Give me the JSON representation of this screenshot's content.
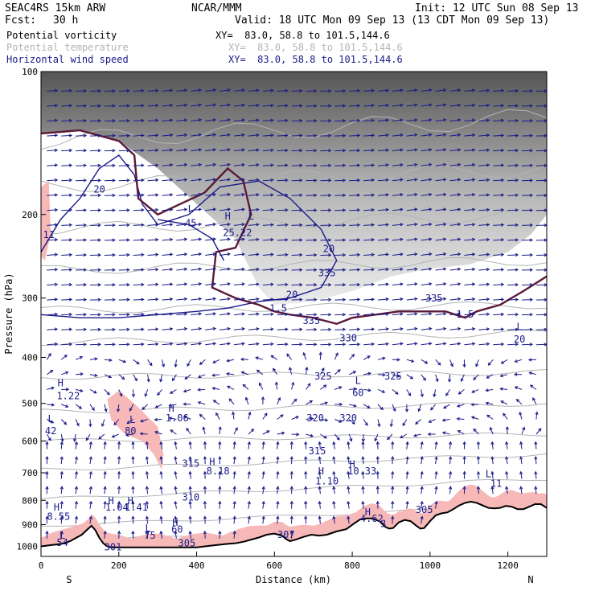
{
  "header": {
    "model": "SEAC4RS 15km ARW",
    "fcst_label": "Fcst:",
    "fcst_value": "30 h",
    "org": "NCAR/MMM",
    "init": "Init: 12 UTC Sun 08 Sep 13",
    "valid": "Valid: 18 UTC Mon 09 Sep 13 (13 CDT Mon 09 Sep 13)"
  },
  "legend": [
    {
      "name": "Potential vorticity",
      "xy": "XY=  83.0, 58.8 to 101.5,144.6",
      "color": "#000000"
    },
    {
      "name": "Potential temperature",
      "xy": "XY=  83.0, 58.8 to 101.5,144.6",
      "color": "#b4b4b4"
    },
    {
      "name": "Horizontal wind speed",
      "xy": "XY=  83.0, 58.8 to 101.5,144.6",
      "color": "#1a1a8a"
    }
  ],
  "colors": {
    "pv_fill": "#f7b8b8",
    "pv_contour": "#5a1a3a",
    "wind_contour": "#1a1a8a",
    "theta_contour": "#b4b4b4",
    "vector": "#1a1a8a",
    "terrain": "#000000"
  },
  "chart_data": {
    "type": "vertical cross-section",
    "xlabel": "Distance (km)",
    "ylabel": "Pressure (hPa)",
    "xlim": [
      0,
      1300
    ],
    "ylim": [
      100,
      1050
    ],
    "y_scale": "log",
    "x_ticks": [
      0,
      200,
      400,
      600,
      800,
      1000,
      1200
    ],
    "y_ticks": [
      100,
      200,
      300,
      400,
      500,
      600,
      700,
      800,
      900,
      1000
    ],
    "x_end_labels": {
      "left": "S",
      "right": "N"
    },
    "terrain_pressure": [
      [
        0,
        1000
      ],
      [
        20,
        995
      ],
      [
        45,
        990
      ],
      [
        60,
        985
      ],
      [
        75,
        975
      ],
      [
        90,
        960
      ],
      [
        105,
        945
      ],
      [
        120,
        920
      ],
      [
        130,
        905
      ],
      [
        140,
        925
      ],
      [
        150,
        960
      ],
      [
        160,
        985
      ],
      [
        170,
        1000
      ],
      [
        180,
        1005
      ],
      [
        200,
        1005
      ],
      [
        400,
        1005
      ],
      [
        430,
        998
      ],
      [
        460,
        992
      ],
      [
        480,
        988
      ],
      [
        500,
        985
      ],
      [
        520,
        978
      ],
      [
        540,
        968
      ],
      [
        560,
        958
      ],
      [
        580,
        945
      ],
      [
        600,
        940
      ],
      [
        620,
        950
      ],
      [
        630,
        965
      ],
      [
        640,
        975
      ],
      [
        655,
        968
      ],
      [
        675,
        955
      ],
      [
        695,
        945
      ],
      [
        715,
        950
      ],
      [
        735,
        945
      ],
      [
        760,
        930
      ],
      [
        785,
        920
      ],
      [
        805,
        895
      ],
      [
        820,
        878
      ],
      [
        835,
        873
      ],
      [
        850,
        873
      ],
      [
        870,
        885
      ],
      [
        885,
        910
      ],
      [
        895,
        918
      ],
      [
        905,
        915
      ],
      [
        920,
        890
      ],
      [
        935,
        880
      ],
      [
        950,
        885
      ],
      [
        965,
        905
      ],
      [
        975,
        918
      ],
      [
        985,
        915
      ],
      [
        1000,
        885
      ],
      [
        1015,
        860
      ],
      [
        1030,
        852
      ],
      [
        1045,
        848
      ],
      [
        1060,
        835
      ],
      [
        1075,
        820
      ],
      [
        1090,
        810
      ],
      [
        1105,
        805
      ],
      [
        1120,
        810
      ],
      [
        1135,
        820
      ],
      [
        1150,
        830
      ],
      [
        1165,
        832
      ],
      [
        1180,
        830
      ],
      [
        1195,
        822
      ],
      [
        1210,
        825
      ],
      [
        1225,
        835
      ],
      [
        1240,
        835
      ],
      [
        1255,
        825
      ],
      [
        1270,
        815
      ],
      [
        1285,
        815
      ],
      [
        1300,
        830
      ]
    ],
    "labels": [
      {
        "text": "20",
        "x": 150,
        "p": 180
      },
      {
        "text": "L",
        "x": 385,
        "p": 198
      },
      {
        "text": "45",
        "x": 385,
        "p": 212
      },
      {
        "text": "H",
        "x": 480,
        "p": 205
      },
      {
        "text": "L",
        "x": 540,
        "p": 205
      },
      {
        "text": "25.22",
        "x": 505,
        "p": 222
      },
      {
        "text": "11",
        "x": 20,
        "p": 224
      },
      {
        "text": "20",
        "x": 740,
        "p": 240
      },
      {
        "text": "20",
        "x": 645,
        "p": 300
      },
      {
        "text": "1.5",
        "x": 610,
        "p": 320
      },
      {
        "text": "1.5",
        "x": 1090,
        "p": 330
      },
      {
        "text": "L",
        "x": 1230,
        "p": 350
      },
      {
        "text": "20",
        "x": 1230,
        "p": 372
      },
      {
        "text": "H",
        "x": 50,
        "p": 460
      },
      {
        "text": "1.22",
        "x": 70,
        "p": 490
      },
      {
        "text": "L",
        "x": 815,
        "p": 455
      },
      {
        "text": "60",
        "x": 815,
        "p": 482
      },
      {
        "text": "325",
        "x": 725,
        "p": 445
      },
      {
        "text": "325",
        "x": 905,
        "p": 445
      },
      {
        "text": "H",
        "x": 335,
        "p": 520
      },
      {
        "text": "1.06",
        "x": 350,
        "p": 545
      },
      {
        "text": "L",
        "x": 25,
        "p": 548
      },
      {
        "text": "42",
        "x": 25,
        "p": 580
      },
      {
        "text": "L",
        "x": 235,
        "p": 550
      },
      {
        "text": "80",
        "x": 230,
        "p": 580
      },
      {
        "text": "320",
        "x": 705,
        "p": 545
      },
      {
        "text": "320",
        "x": 790,
        "p": 545
      },
      {
        "text": "315",
        "x": 710,
        "p": 640
      },
      {
        "text": "315",
        "x": 385,
        "p": 680
      },
      {
        "text": "H",
        "x": 440,
        "p": 675
      },
      {
        "text": "8.18",
        "x": 455,
        "p": 705
      },
      {
        "text": "H",
        "x": 720,
        "p": 705
      },
      {
        "text": "1.10",
        "x": 735,
        "p": 740
      },
      {
        "text": "H",
        "x": 800,
        "p": 682
      },
      {
        "text": "10.33",
        "x": 825,
        "p": 705
      },
      {
        "text": "L",
        "x": 1150,
        "p": 715
      },
      {
        "text": "11",
        "x": 1170,
        "p": 750
      },
      {
        "text": "310",
        "x": 385,
        "p": 800
      },
      {
        "text": "H",
        "x": 40,
        "p": 840
      },
      {
        "text": "8.55",
        "x": 45,
        "p": 880
      },
      {
        "text": "H",
        "x": 180,
        "p": 815
      },
      {
        "text": "1.04",
        "x": 195,
        "p": 840
      },
      {
        "text": "H",
        "x": 230,
        "p": 815
      },
      {
        "text": "1.41",
        "x": 245,
        "p": 840
      },
      {
        "text": "305",
        "x": 985,
        "p": 850
      },
      {
        "text": "H",
        "x": 840,
        "p": 860
      },
      {
        "text": "4.62",
        "x": 850,
        "p": 888
      },
      {
        "text": "H",
        "x": 345,
        "p": 905
      },
      {
        "text": "60",
        "x": 350,
        "p": 935
      },
      {
        "text": "L",
        "x": 275,
        "p": 930
      },
      {
        "text": "75",
        "x": 280,
        "p": 963
      },
      {
        "text": "L",
        "x": 55,
        "p": 963
      },
      {
        "text": "54",
        "x": 55,
        "p": 998
      },
      {
        "text": "305",
        "x": 375,
        "p": 1000
      },
      {
        "text": "301",
        "x": 185,
        "p": 1020
      },
      {
        "text": "3",
        "x": 880,
        "p": 910
      },
      {
        "text": "307",
        "x": 630,
        "p": 960
      },
      {
        "text": "335",
        "x": 695,
        "p": 340
      },
      {
        "text": "330",
        "x": 790,
        "p": 370
      },
      {
        "text": "335",
        "x": 735,
        "p": 270
      },
      {
        "text": "335",
        "x": 1010,
        "p": 305
      }
    ]
  }
}
